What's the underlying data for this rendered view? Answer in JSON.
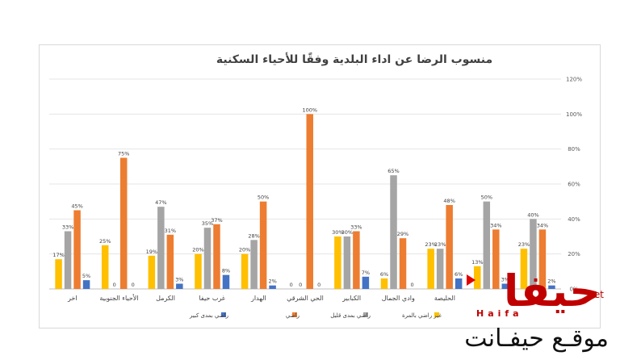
{
  "chart_data": {
    "type": "bar",
    "title": "منسوب الرضا عن اداء البلدية وفقًا للأحياء السكنية",
    "categories": [
      "الحليصة",
      "وادي الجمال",
      "الكبابير",
      "الحي الشرقي",
      "الهدار",
      "غرب حيفا",
      "الكرمل",
      "الأحياء الجنوبية",
      "اخر"
    ],
    "series": [
      {
        "name": "غير راضي بالمرة",
        "color": "#FFC000",
        "values": [
          23,
          6,
          30,
          0,
          20,
          20,
          19,
          25,
          17
        ],
        "labels": [
          "23%",
          "6%",
          "30%",
          "0",
          "20%",
          "20%",
          "19%",
          "25%",
          "17%"
        ]
      },
      {
        "name": "راضي بمدى قليل",
        "color": "#A5A5A5",
        "values": [
          23,
          65,
          30,
          0,
          28,
          35,
          47,
          0,
          33
        ],
        "labels": [
          "23%",
          "65%",
          "30%",
          "0",
          "28%",
          "35%",
          "47%",
          "0",
          "33%"
        ]
      },
      {
        "name": "راضي",
        "color": "#ED7D31",
        "values": [
          48,
          29,
          33,
          100,
          50,
          37,
          31,
          75,
          45
        ],
        "labels": [
          "48%",
          "29%",
          "33%",
          "100%",
          "50%",
          "37%",
          "31%",
          "75%",
          "45%"
        ]
      },
      {
        "name": "راضي بمدى كبير",
        "color": "#4472C4",
        "values": [
          6,
          0,
          7,
          0,
          2,
          8,
          3,
          0,
          5
        ],
        "labels": [
          "6%",
          "0",
          "7%",
          "0",
          "2%",
          "8%",
          "3%",
          "0",
          "5%"
        ]
      }
    ],
    "extra_groups": [
      {
        "values": [
          13,
          50,
          34,
          3
        ],
        "labels": [
          "13%",
          "50%",
          "34%",
          "3%"
        ]
      },
      {
        "values": [
          23,
          40,
          34,
          2
        ],
        "labels": [
          "23%",
          "40%",
          "34%",
          "2%"
        ]
      }
    ],
    "y_ticks": [
      "0%",
      "20%",
      "40%",
      "60%",
      "80%",
      "100%",
      "120%"
    ],
    "ylim": [
      0,
      120
    ],
    "grid": true,
    "legend_position": "bottom"
  },
  "logo": {
    "main": "حيفا",
    "latin": "Haifa",
    "net": "net",
    "tagline": "موقـع حيفـانت"
  }
}
